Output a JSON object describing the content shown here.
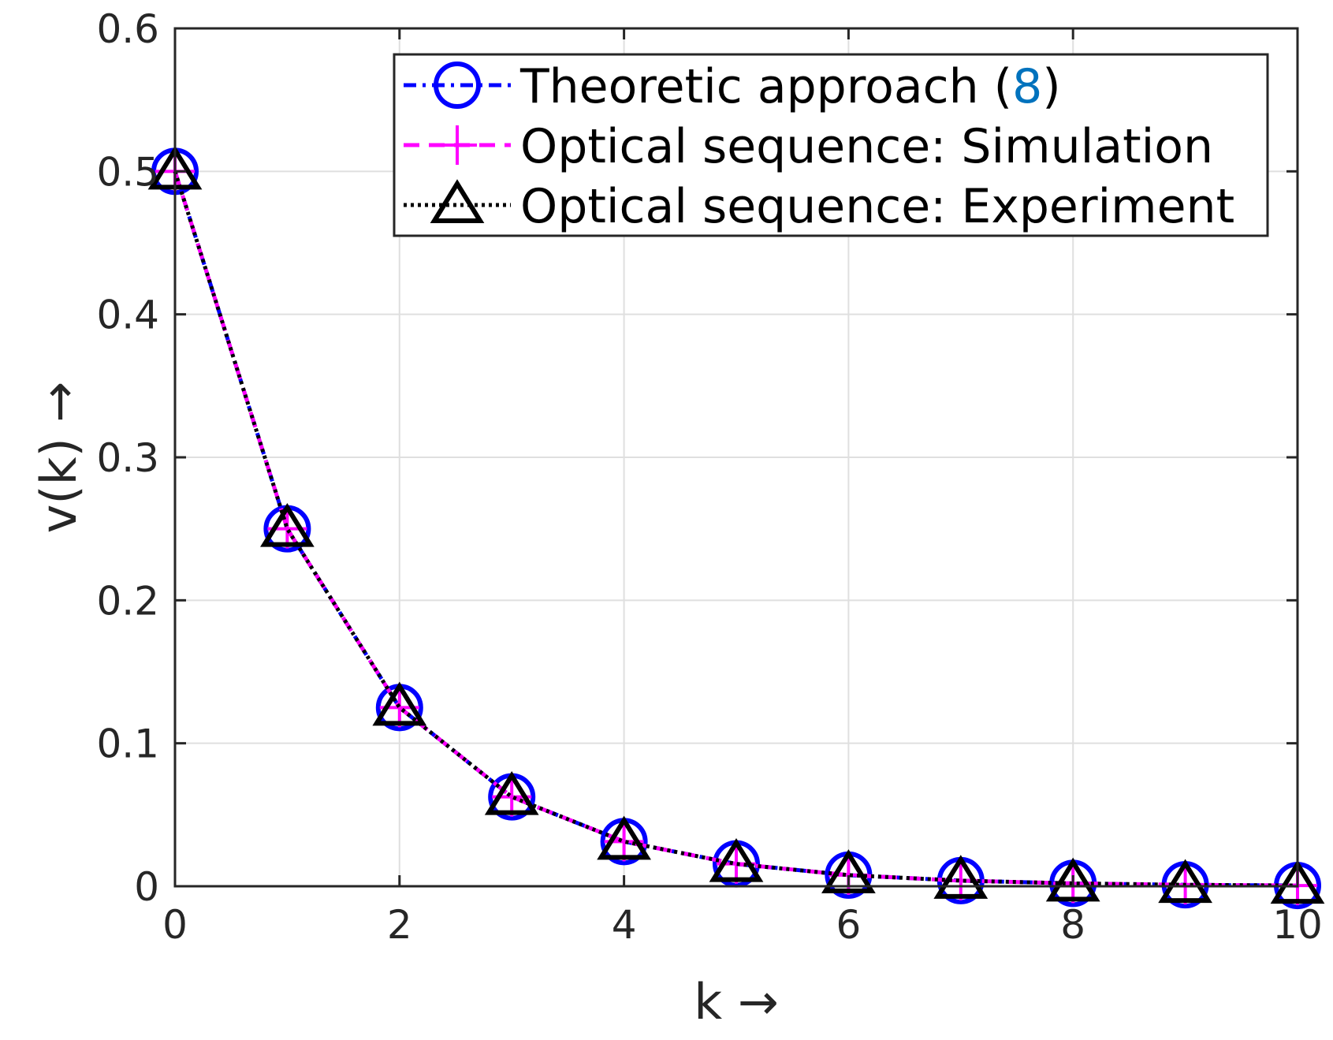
{
  "chart_data": {
    "type": "line",
    "xlabel": "k →",
    "ylabel": "v(k) →",
    "xlim": [
      0,
      10
    ],
    "ylim": [
      0,
      0.6
    ],
    "xticks": [
      0,
      2,
      4,
      6,
      8,
      10
    ],
    "xtick_labels": [
      "0",
      "2",
      "4",
      "6",
      "8",
      "10"
    ],
    "yticks": [
      0,
      0.1,
      0.2,
      0.3,
      0.4,
      0.5,
      0.6
    ],
    "ytick_labels": [
      "0",
      "0.1",
      "0.2",
      "0.3",
      "0.4",
      "0.5",
      "0.6"
    ],
    "grid": true,
    "legend_position": "top-right",
    "x": [
      0,
      1,
      2,
      3,
      4,
      5,
      6,
      7,
      8,
      9,
      10
    ],
    "series": [
      {
        "name": "Theoretic approach (",
        "name_ref": "8",
        "name_suffix": ")",
        "color": "#0000ff",
        "ref_color": "#0072bd",
        "line_style": "dash-dot",
        "marker": "circle",
        "values": [
          0.5,
          0.25,
          0.125,
          0.0625,
          0.03125,
          0.015625,
          0.0078,
          0.0039,
          0.002,
          0.001,
          0.0005
        ]
      },
      {
        "name": "Optical sequence: Simulation",
        "color": "#ff00ff",
        "line_style": "dashed",
        "marker": "plus",
        "values": [
          0.5,
          0.25,
          0.125,
          0.0625,
          0.03125,
          0.015625,
          0.0078,
          0.0039,
          0.002,
          0.001,
          0.0005
        ]
      },
      {
        "name": "Optical sequence: Experiment",
        "color": "#000000",
        "line_style": "dotted",
        "marker": "triangle",
        "values": [
          0.5,
          0.25,
          0.125,
          0.0625,
          0.03125,
          0.015625,
          0.0078,
          0.0039,
          0.002,
          0.001,
          0.0005
        ]
      }
    ]
  }
}
